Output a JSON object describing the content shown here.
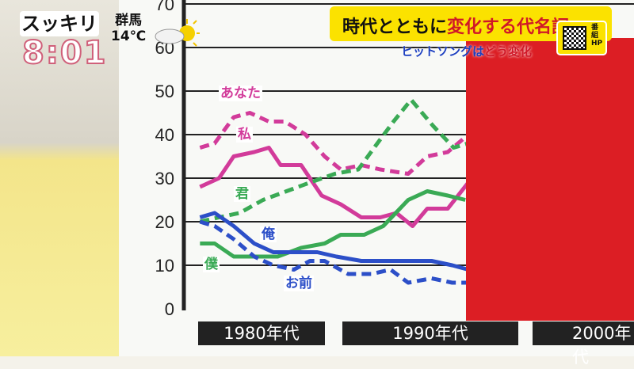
{
  "show": {
    "name": "スッキリ",
    "time": "8:01"
  },
  "weather": {
    "region": "群馬",
    "temp": "14℃",
    "icon": "partly-sunny-icon"
  },
  "headline": {
    "title_black": "時代とともに",
    "title_red": "変化する代名詞",
    "sub_blue": "ヒットソングは",
    "sub_red": "どう変化",
    "qr_label": "番組HP"
  },
  "colors": {
    "pink": "#d23b9a",
    "green": "#3aaa55",
    "blue": "#2c4fc8",
    "panel": "#dc1e24"
  },
  "chart_data": {
    "type": "line",
    "title": "時代とともに変化する代名詞",
    "xlabel": "",
    "ylabel": "",
    "ylim": [
      0,
      70
    ],
    "yticks": [
      "0",
      "10",
      "20",
      "30",
      "40",
      "50",
      "60",
      "70"
    ],
    "xcategories": [
      "1980年代",
      "1990年代",
      "2000年代"
    ],
    "grid": true,
    "series": [
      {
        "name": "あなた",
        "color": "#d23b9a",
        "style": "dashed",
        "x": [
          1981.1,
          1982.1,
          1983.4,
          1984.5,
          1985.8,
          1986.9,
          1988.3,
          1989.6,
          1990.7,
          1992.1,
          1993.4,
          1995.3,
          1996.6,
          1998,
          1999.4
        ],
        "y": [
          37,
          38,
          44,
          45,
          43,
          43,
          40,
          35,
          32,
          33,
          32,
          31,
          35,
          36,
          40
        ]
      },
      {
        "name": "私",
        "color": "#d23b9a",
        "style": "solid",
        "x": [
          1981.1,
          1982.4,
          1983.4,
          1984.8,
          1985.8,
          1986.6,
          1988,
          1989.4,
          1990.7,
          1992.1,
          1993.4,
          1994.5,
          1995.6,
          1996.6,
          1998,
          1999.4
        ],
        "y": [
          28,
          30,
          35,
          36,
          37,
          33,
          33,
          26,
          24,
          21,
          21,
          22,
          19,
          23,
          23,
          29
        ]
      },
      {
        "name": "君",
        "color": "#3aaa55",
        "style": "dashed",
        "x": [
          1981.1,
          1982.4,
          1983.8,
          1985.4,
          1987,
          1988.6,
          1990.3,
          1991.9,
          1993.2,
          1994.3,
          1995.5,
          1997,
          1998.4,
          1999.4
        ],
        "y": [
          20,
          21,
          22,
          25,
          27,
          29,
          31,
          32,
          38,
          43,
          48,
          42,
          37,
          38
        ]
      },
      {
        "name": "僕",
        "color": "#3aaa55",
        "style": "solid",
        "x": [
          1981.1,
          1982.1,
          1983.4,
          1984.8,
          1986.4,
          1988,
          1989.6,
          1990.7,
          1992.3,
          1993.6,
          1995.3,
          1996.6,
          1998,
          1999.2
        ],
        "y": [
          15,
          15,
          12,
          12,
          12,
          14,
          15,
          17,
          17,
          19,
          25,
          27,
          26,
          25
        ]
      },
      {
        "name": "俺",
        "color": "#2c4fc8",
        "style": "solid",
        "x": [
          1981.1,
          1982.1,
          1983.4,
          1984.8,
          1986.1,
          1987.5,
          1989.1,
          1990.4,
          1992.1,
          1993.9,
          1995.5,
          1996.9,
          1998.3,
          1999.4
        ],
        "y": [
          21,
          22,
          19,
          15,
          13,
          13,
          13,
          12,
          11,
          11,
          11,
          11,
          10,
          9
        ]
      },
      {
        "name": "お前",
        "color": "#2c4fc8",
        "style": "dashed",
        "x": [
          1981.1,
          1982.1,
          1983.4,
          1984.8,
          1986.1,
          1987.5,
          1988.6,
          1989.6,
          1991.2,
          1992.8,
          1994.1,
          1995.3,
          1996.9,
          1998.3,
          1999.4
        ],
        "y": [
          20,
          19,
          16,
          12,
          10,
          9,
          11,
          11,
          8,
          8,
          9,
          6,
          7,
          6,
          6
        ]
      }
    ]
  }
}
